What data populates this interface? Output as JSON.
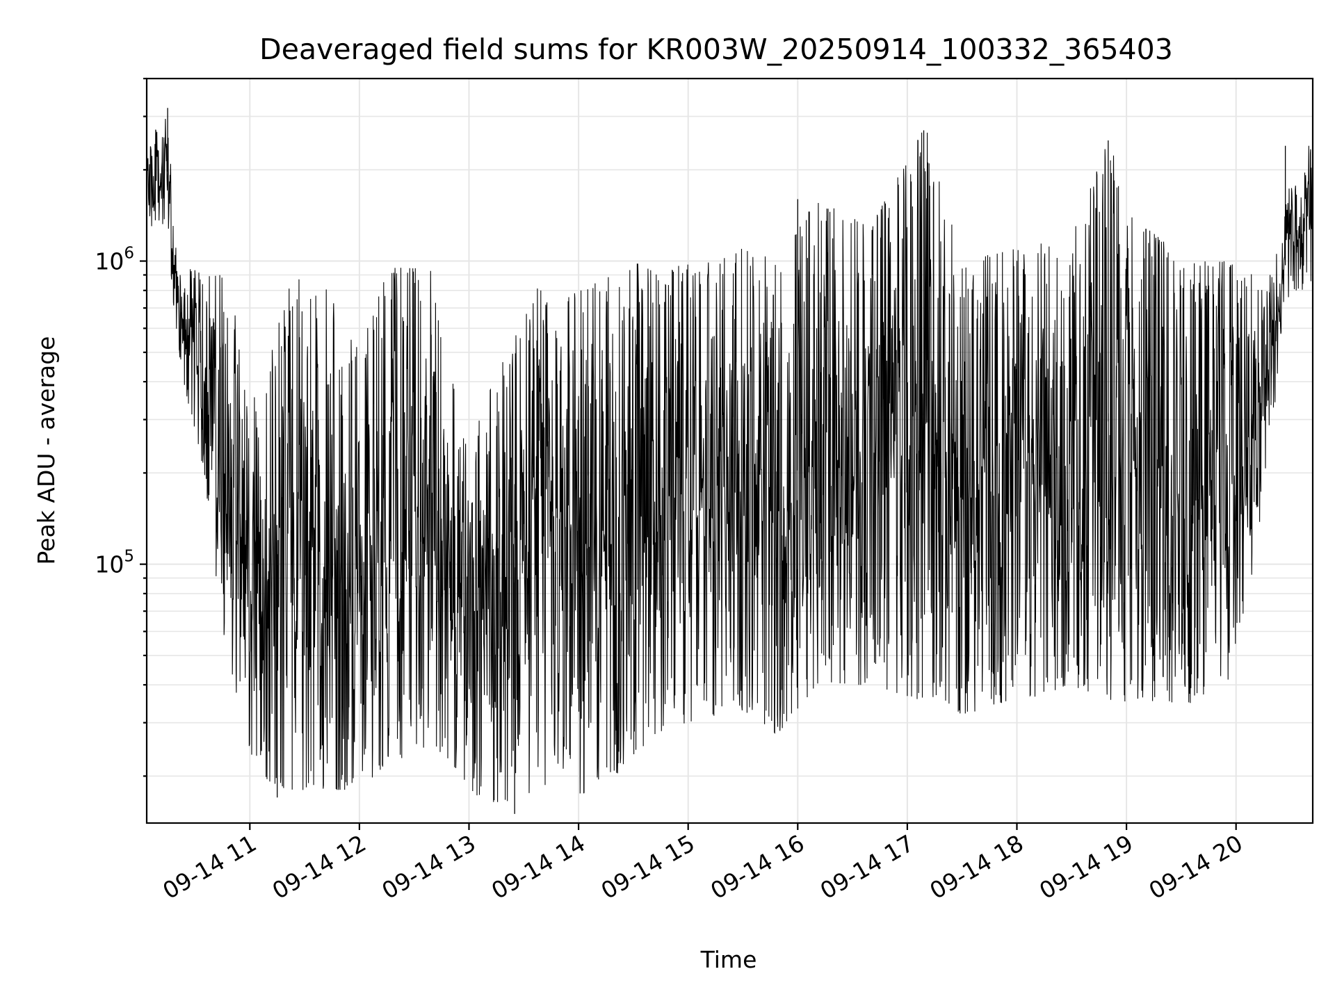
{
  "chart_data": {
    "type": "line",
    "title": "Deaveraged field sums for KR003W_20250914_100332_365403",
    "xlabel": "Time",
    "ylabel": "Peak ADU - average",
    "y_scale": "log",
    "ylim": [
      14000,
      4000000
    ],
    "xlim": [
      "2025-09-14 10:03:32",
      "2025-09-14 20:42:00"
    ],
    "x_ticks": [
      {
        "t": "2025-09-14 11:00",
        "label": "09-14 11"
      },
      {
        "t": "2025-09-14 12:00",
        "label": "09-14 12"
      },
      {
        "t": "2025-09-14 13:00",
        "label": "09-14 13"
      },
      {
        "t": "2025-09-14 14:00",
        "label": "09-14 14"
      },
      {
        "t": "2025-09-14 15:00",
        "label": "09-14 15"
      },
      {
        "t": "2025-09-14 16:00",
        "label": "09-14 16"
      },
      {
        "t": "2025-09-14 17:00",
        "label": "09-14 17"
      },
      {
        "t": "2025-09-14 18:00",
        "label": "09-14 18"
      },
      {
        "t": "2025-09-14 19:00",
        "label": "09-14 19"
      },
      {
        "t": "2025-09-14 20:00",
        "label": "09-14 20"
      }
    ],
    "y_ticks": [
      {
        "value": 100000,
        "base": "10",
        "exp": "5"
      },
      {
        "value": 1000000,
        "base": "10",
        "exp": "6"
      }
    ],
    "grid": true,
    "series_color": "#000000",
    "envelope": [
      {
        "t": "2025-09-14 10:03",
        "low": 1200000,
        "high": 2500000
      },
      {
        "t": "2025-09-14 10:15",
        "low": 1300000,
        "high": 3000000
      },
      {
        "t": "2025-09-14 10:20",
        "low": 500000,
        "high": 1000000
      },
      {
        "t": "2025-09-14 10:35",
        "low": 200000,
        "high": 900000
      },
      {
        "t": "2025-09-14 10:45",
        "low": 60000,
        "high": 900000
      },
      {
        "t": "2025-09-14 10:55",
        "low": 30000,
        "high": 600000
      },
      {
        "t": "2025-09-14 11:05",
        "low": 20000,
        "high": 300000
      },
      {
        "t": "2025-09-14 11:20",
        "low": 18000,
        "high": 900000
      },
      {
        "t": "2025-09-14 11:40",
        "low": 18000,
        "high": 850000
      },
      {
        "t": "2025-09-14 12:00",
        "low": 18000,
        "high": 500000
      },
      {
        "t": "2025-09-14 12:15",
        "low": 22000,
        "high": 950000
      },
      {
        "t": "2025-09-14 12:40",
        "low": 25000,
        "high": 950000
      },
      {
        "t": "2025-09-14 12:55",
        "low": 20000,
        "high": 300000
      },
      {
        "t": "2025-09-14 13:05",
        "low": 17000,
        "high": 300000
      },
      {
        "t": "2025-09-14 13:20",
        "low": 16000,
        "high": 500000
      },
      {
        "t": "2025-09-14 13:40",
        "low": 18000,
        "high": 900000
      },
      {
        "t": "2025-09-14 14:00",
        "low": 17000,
        "high": 800000
      },
      {
        "t": "2025-09-14 14:30",
        "low": 22000,
        "high": 1000000
      },
      {
        "t": "2025-09-14 14:45",
        "low": 28000,
        "high": 900000
      },
      {
        "t": "2025-09-14 15:00",
        "low": 30000,
        "high": 1000000
      },
      {
        "t": "2025-09-14 15:30",
        "low": 33000,
        "high": 1100000
      },
      {
        "t": "2025-09-14 15:50",
        "low": 27000,
        "high": 1000000
      },
      {
        "t": "2025-09-14 16:10",
        "low": 40000,
        "high": 1600000
      },
      {
        "t": "2025-09-14 16:40",
        "low": 40000,
        "high": 1300000
      },
      {
        "t": "2025-09-14 17:10",
        "low": 35000,
        "high": 2800000
      },
      {
        "t": "2025-09-14 17:30",
        "low": 32000,
        "high": 1000000
      },
      {
        "t": "2025-09-14 18:00",
        "low": 35000,
        "high": 1100000
      },
      {
        "t": "2025-09-14 18:30",
        "low": 40000,
        "high": 1200000
      },
      {
        "t": "2025-09-14 18:50",
        "low": 35000,
        "high": 2500000
      },
      {
        "t": "2025-09-14 19:10",
        "low": 35000,
        "high": 1300000
      },
      {
        "t": "2025-09-14 19:35",
        "low": 33000,
        "high": 1000000
      },
      {
        "t": "2025-09-14 19:55",
        "low": 40000,
        "high": 1000000
      },
      {
        "t": "2025-09-14 20:10",
        "low": 100000,
        "high": 900000
      },
      {
        "t": "2025-09-14 20:20",
        "low": 300000,
        "high": 900000
      },
      {
        "t": "2025-09-14 20:30",
        "low": 800000,
        "high": 2000000
      },
      {
        "t": "2025-09-14 20:42",
        "low": 800000,
        "high": 2500000
      }
    ],
    "spikes": [
      {
        "t": "2025-09-14 10:15",
        "value": 3200000
      },
      {
        "t": "2025-09-14 17:09",
        "value": 2700000
      },
      {
        "t": "2025-09-14 18:50",
        "value": 2500000
      },
      {
        "t": "2025-09-14 20:27",
        "value": 2400000
      },
      {
        "t": "2025-09-14 16:00",
        "value": 1600000
      },
      {
        "t": "2025-09-14 13:25",
        "value": 15000
      },
      {
        "t": "2025-09-14 11:15",
        "value": 17000
      }
    ]
  }
}
